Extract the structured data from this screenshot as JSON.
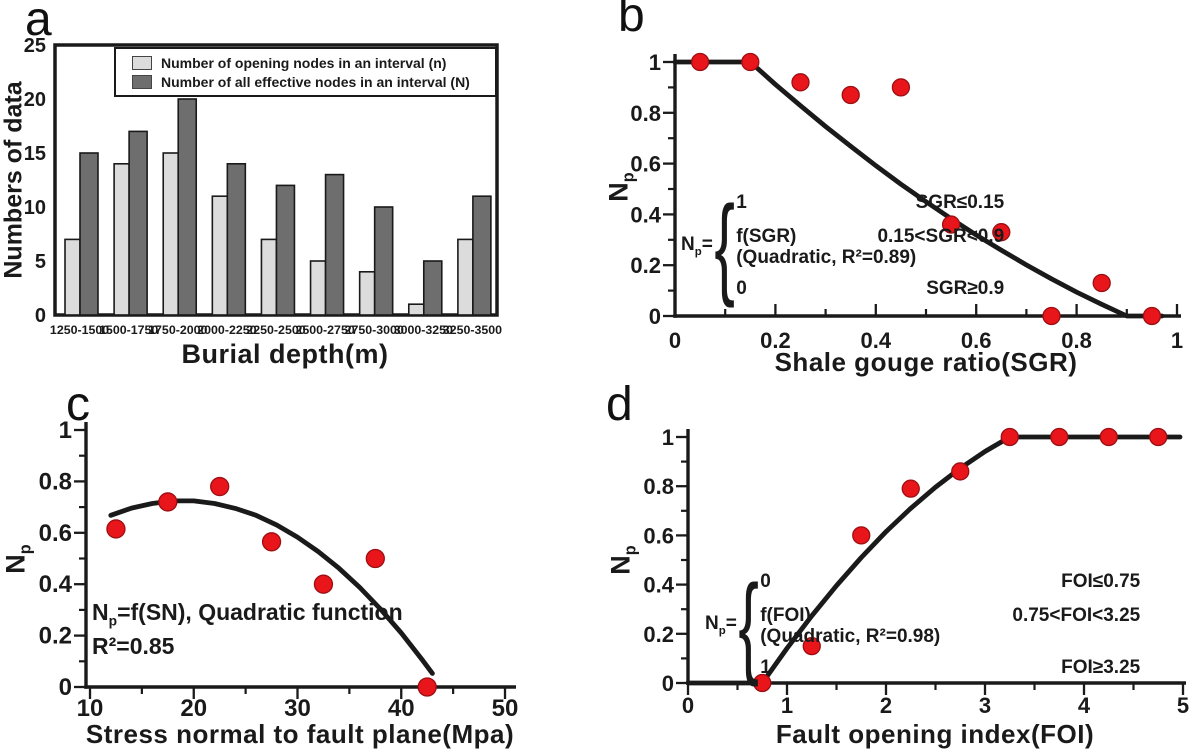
{
  "colors": {
    "axis": "#1a1a1a",
    "point": "#e8161b",
    "point_edge": "#9c0e12",
    "bar_light": "#dcdcdc",
    "bar_dark": "#6e6e6e",
    "background": "#ffffff"
  },
  "chart_data": [
    {
      "type": "bar",
      "panel_label": "a",
      "xlabel": "Burial depth(m)",
      "ylabel": "Numbers of data",
      "ylim": [
        0,
        25
      ],
      "yticks": {
        "values": [
          0,
          5,
          10,
          15,
          20,
          25
        ],
        "labels": [
          "0",
          "5",
          "10",
          "15",
          "20",
          "25"
        ]
      },
      "categories": [
        "1250-1500",
        "1500-1750",
        "1750-2000",
        "2000-2250",
        "2250-2500",
        "2500-2750",
        "2750-3000",
        "3000-3250",
        "3250-3500"
      ],
      "series": [
        {
          "name": "Number of opening nodes in an interval (n)",
          "color": "#dcdcdc",
          "values": [
            7,
            14,
            15,
            11,
            7,
            5,
            4,
            1,
            7
          ]
        },
        {
          "name": "Number of all effective nodes in an interval (N)",
          "color": "#6e6e6e",
          "values": [
            15,
            17,
            20,
            14,
            12,
            13,
            10,
            5,
            11
          ]
        }
      ],
      "legend_position": "top-right-inside",
      "grid": false
    },
    {
      "type": "scatter",
      "panel_label": "b",
      "xlabel": "Shale gouge ratio(SGR)",
      "ylabel": "Np",
      "ylabel_base": "N",
      "ylabel_sub": "p",
      "xlim": [
        0,
        1
      ],
      "ylim": [
        0,
        1
      ],
      "xticks": {
        "values": [
          0,
          0.2,
          0.4,
          0.6,
          0.8,
          1
        ],
        "labels": [
          "0",
          "0.2",
          "0.4",
          "0.6",
          "0.8",
          "1"
        ]
      },
      "yticks": {
        "values": [
          0,
          0.2,
          0.4,
          0.6,
          0.8,
          1
        ],
        "labels": [
          "0",
          "0.2",
          "0.4",
          "0.6",
          "0.8",
          "1"
        ]
      },
      "xminor": 0.1,
      "yminor": 0.1,
      "points": [
        [
          0.05,
          1.0
        ],
        [
          0.15,
          1.0
        ],
        [
          0.25,
          0.92
        ],
        [
          0.35,
          0.87
        ],
        [
          0.45,
          0.9
        ],
        [
          0.55,
          0.36
        ],
        [
          0.65,
          0.33
        ],
        [
          0.75,
          0.0
        ],
        [
          0.85,
          0.13
        ],
        [
          0.95,
          0.0
        ]
      ],
      "curve": [
        [
          0,
          1
        ],
        [
          0.15,
          1
        ],
        [
          0.2,
          0.912
        ],
        [
          0.25,
          0.828
        ],
        [
          0.3,
          0.746
        ],
        [
          0.35,
          0.668
        ],
        [
          0.4,
          0.592
        ],
        [
          0.45,
          0.519
        ],
        [
          0.5,
          0.45
        ],
        [
          0.55,
          0.383
        ],
        [
          0.6,
          0.319
        ],
        [
          0.65,
          0.259
        ],
        [
          0.7,
          0.201
        ],
        [
          0.75,
          0.146
        ],
        [
          0.8,
          0.094
        ],
        [
          0.85,
          0.046
        ],
        [
          0.9,
          0
        ],
        [
          0.97,
          0
        ]
      ],
      "annotation": {
        "prefix_base": "N",
        "prefix_sub": "p",
        "prefix_eq": "=",
        "brace": "{",
        "rows": [
          {
            "expr": "1",
            "cond": "SGR≤0.15"
          },
          {
            "expr": "f(SGR)",
            "cond": "0.15<SGR<0.9"
          },
          {
            "expr": "(Quadratic, R²=0.89)",
            "cond": ""
          },
          {
            "expr": "0",
            "cond": "SGR≥0.9"
          }
        ]
      },
      "grid": false
    },
    {
      "type": "scatter",
      "panel_label": "c",
      "xlabel": "Stress normal to fault plane(Mpa)",
      "ylabel": "Np",
      "ylabel_base": "N",
      "ylabel_sub": "p",
      "xlim": [
        10,
        50
      ],
      "ylim": [
        0,
        1
      ],
      "xticks": {
        "values": [
          10,
          20,
          30,
          40,
          50
        ],
        "labels": [
          "10",
          "20",
          "30",
          "40",
          "50"
        ]
      },
      "yticks": {
        "values": [
          0,
          0.2,
          0.4,
          0.6,
          0.8,
          1
        ],
        "labels": [
          "0",
          "0.2",
          "0.4",
          "0.6",
          "0.8",
          "1"
        ]
      },
      "xminor": 5,
      "yminor": 0.1,
      "points": [
        [
          12.5,
          0.615
        ],
        [
          17.5,
          0.72
        ],
        [
          22.5,
          0.78
        ],
        [
          27.5,
          0.565
        ],
        [
          32.5,
          0.4
        ],
        [
          37.5,
          0.5
        ],
        [
          42.5,
          0.0
        ]
      ],
      "curve": [
        [
          12,
          0.668
        ],
        [
          14,
          0.696
        ],
        [
          16,
          0.714
        ],
        [
          18,
          0.724
        ],
        [
          20,
          0.724
        ],
        [
          22,
          0.714
        ],
        [
          24,
          0.695
        ],
        [
          26,
          0.668
        ],
        [
          28,
          0.63
        ],
        [
          30,
          0.583
        ],
        [
          32,
          0.527
        ],
        [
          34,
          0.462
        ],
        [
          36,
          0.387
        ],
        [
          38,
          0.303
        ],
        [
          40,
          0.21
        ],
        [
          42,
          0.107
        ],
        [
          43,
          0.053
        ]
      ],
      "annotation": {
        "line1_base": "N",
        "line1_sub": "p",
        "line1_rest": "=f(SN), Quadratic function",
        "line2": "R²=0.85"
      },
      "grid": false
    },
    {
      "type": "scatter",
      "panel_label": "d",
      "xlabel": "Fault opening index(FOI)",
      "ylabel": "Np",
      "ylabel_base": "N",
      "ylabel_sub": "p",
      "xlim": [
        0,
        5
      ],
      "ylim": [
        0,
        1
      ],
      "xticks": {
        "values": [
          0,
          1,
          2,
          3,
          4,
          5
        ],
        "labels": [
          "0",
          "1",
          "2",
          "3",
          "4",
          "5"
        ]
      },
      "yticks": {
        "values": [
          0,
          0.2,
          0.4,
          0.6,
          0.8,
          1
        ],
        "labels": [
          "0",
          "0.2",
          "0.4",
          "0.6",
          "0.8",
          "1"
        ]
      },
      "xminor": 0.5,
      "yminor": 0.1,
      "points": [
        [
          0.75,
          0.0
        ],
        [
          1.25,
          0.15
        ],
        [
          1.75,
          0.6
        ],
        [
          2.25,
          0.79
        ],
        [
          2.75,
          0.86
        ],
        [
          3.25,
          1.0
        ],
        [
          3.75,
          1.0
        ],
        [
          4.25,
          1.0
        ],
        [
          4.75,
          1.0
        ]
      ],
      "curve": [
        [
          0,
          0
        ],
        [
          0.75,
          0
        ],
        [
          1.0,
          0.141
        ],
        [
          1.25,
          0.273
        ],
        [
          1.5,
          0.396
        ],
        [
          1.75,
          0.51
        ],
        [
          2.0,
          0.615
        ],
        [
          2.25,
          0.71
        ],
        [
          2.5,
          0.796
        ],
        [
          2.75,
          0.873
        ],
        [
          3.0,
          0.941
        ],
        [
          3.25,
          1
        ],
        [
          4.97,
          1
        ]
      ],
      "annotation": {
        "prefix_base": "N",
        "prefix_sub": "p",
        "prefix_eq": "=",
        "brace": "{",
        "rows": [
          {
            "expr": "0",
            "cond": "FOI≤0.75"
          },
          {
            "expr": "f(FOI)",
            "cond": "0.75<FOI<3.25"
          },
          {
            "expr": "(Quadratic, R²=0.98)",
            "cond": ""
          },
          {
            "expr": "1",
            "cond": "FOI≥3.25"
          }
        ]
      },
      "grid": false
    }
  ]
}
